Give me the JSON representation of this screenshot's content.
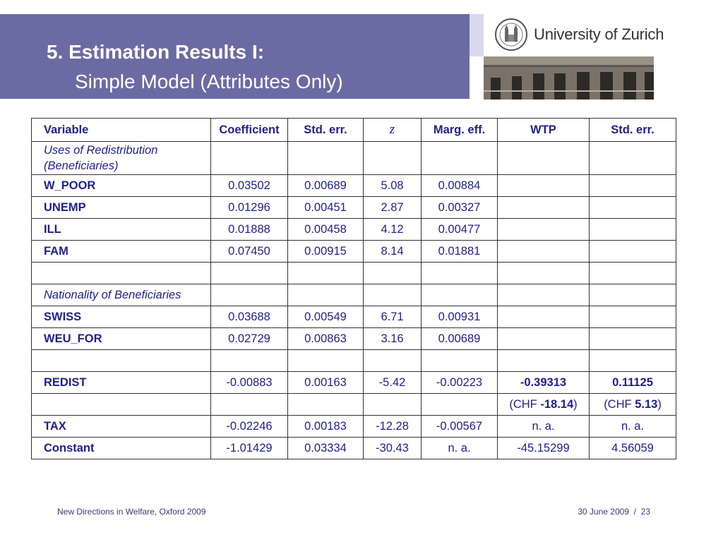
{
  "header": {
    "title_line1": "5. Estimation Results I:",
    "title_line2": "Simple Model (Attributes Only)",
    "band_color": "#6b6ba3"
  },
  "logo": {
    "university_name": "University of Zurich",
    "seal_icon": "university-seal-icon",
    "photo": "university-building-photo"
  },
  "table": {
    "headers": [
      "Variable",
      "Coefficient",
      "Std. err.",
      "z",
      "Marg. eff.",
      "WTP",
      "Std. err."
    ],
    "rows": [
      {
        "label": "Uses of Redistribution (Beneficiaries)",
        "cells": [
          "",
          "",
          "",
          "",
          "",
          ""
        ]
      },
      {
        "label": "W_POOR",
        "cells": [
          "0.03502",
          "0.00689",
          "5.08",
          "0.00884",
          "",
          ""
        ]
      },
      {
        "label": "UNEMP",
        "cells": [
          "0.01296",
          "0.00451",
          "2.87",
          "0.00327",
          "",
          ""
        ]
      },
      {
        "label": "ILL",
        "cells": [
          "0.01888",
          "0.00458",
          "4.12",
          "0.00477",
          "",
          ""
        ]
      },
      {
        "label": "FAM",
        "cells": [
          "0.07450",
          "0.00915",
          "8.14",
          "0.01881",
          "",
          ""
        ]
      },
      {
        "label": "",
        "cells": [
          "",
          "",
          "",
          "",
          "",
          ""
        ]
      },
      {
        "label": "Nationality of Beneficiaries",
        "cells": [
          "",
          "",
          "",
          "",
          "",
          ""
        ]
      },
      {
        "label": "SWISS",
        "cells": [
          "0.03688",
          "0.00549",
          "6.71",
          "0.00931",
          "",
          ""
        ]
      },
      {
        "label": "WEU_FOR",
        "cells": [
          "0.02729",
          "0.00863",
          "3.16",
          "0.00689",
          "",
          ""
        ]
      },
      {
        "label": "",
        "cells": [
          "",
          "",
          "",
          "",
          "",
          ""
        ]
      },
      {
        "label": "REDIST",
        "cells": [
          "-0.00883",
          "0.00163",
          "-5.42",
          "-0.00223",
          "-0.39313",
          "0.11125"
        ]
      },
      {
        "label": "",
        "cells": [
          "",
          "",
          "",
          "",
          "",
          ""
        ],
        "chf": {
          "wtp_prefix": "(CHF ",
          "wtp_value": "-18.14",
          "wtp_suffix": ")",
          "se_prefix": "(CHF ",
          "se_value": "5.13",
          "se_suffix": ")"
        }
      },
      {
        "label": "TAX",
        "cells": [
          "-0.02246",
          "0.00183",
          "-12.28",
          "-0.00567",
          "n. a.",
          "n. a."
        ]
      },
      {
        "label": "Constant",
        "cells": [
          "-1.01429",
          "0.03334",
          "-30.43",
          "n. a.",
          "-45.15299",
          "4.56059"
        ]
      }
    ]
  },
  "footer": {
    "left": "New Directions in Welfare, Oxford 2009",
    "right": "30 June 2009  /  23"
  }
}
